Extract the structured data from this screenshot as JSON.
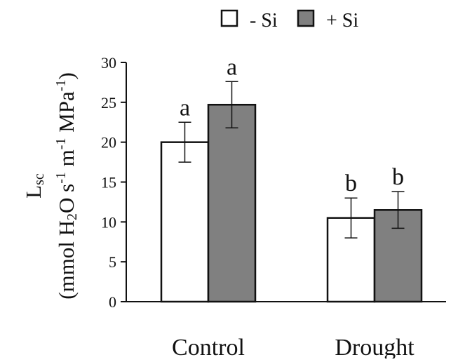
{
  "chart_data": {
    "type": "bar",
    "categories": [
      "Control",
      "Drought"
    ],
    "series": [
      {
        "name": "- Si",
        "values": [
          20,
          10.5
        ],
        "errors": [
          2.5,
          2.5
        ],
        "significance": [
          "a",
          "b"
        ],
        "color": "#ffffff"
      },
      {
        "name": "+ Si",
        "values": [
          24.7,
          11.5
        ],
        "errors": [
          2.9,
          2.3
        ],
        "significance": [
          "a",
          "b"
        ],
        "color": "#808080"
      }
    ],
    "ylim": [
      0,
      30
    ],
    "yticks": [
      0,
      5,
      10,
      15,
      20,
      25,
      30
    ],
    "ylabel_line1": "L",
    "ylabel_line1_sub": "sc",
    "ylabel_line2": "(mmol H2O s-1 m-1 MPa-1)",
    "xlabel": "",
    "legend_position": "top"
  }
}
